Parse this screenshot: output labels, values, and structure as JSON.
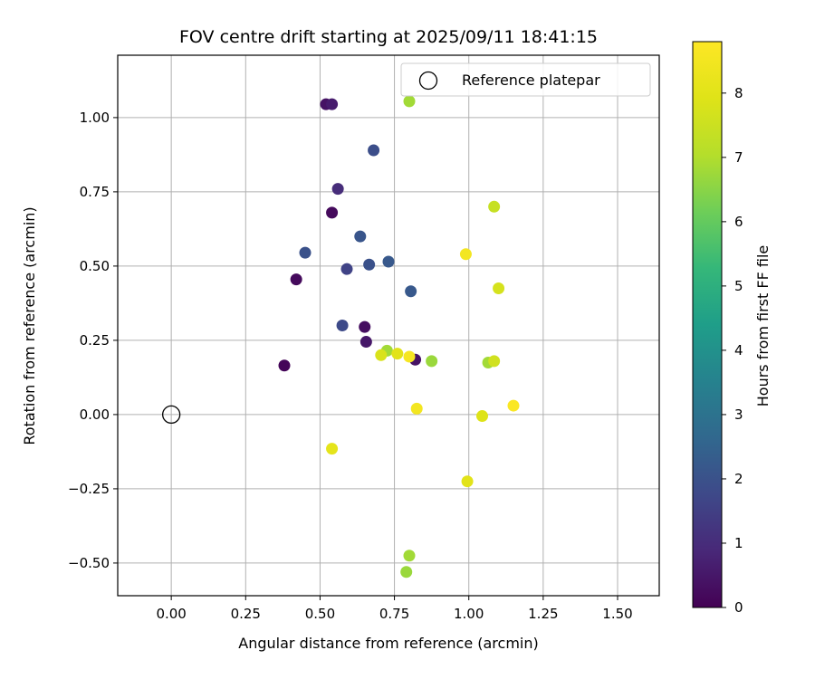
{
  "chart_data": {
    "type": "scatter",
    "title": "FOV centre drift starting at 2025/09/11 18:41:15",
    "xlabel": "Angular distance from reference (arcmin)",
    "ylabel": "Rotation from reference (arcmin)",
    "xlim": [
      -0.18,
      1.64
    ],
    "ylim": [
      -0.61,
      1.21
    ],
    "xticks": [
      0.0,
      0.25,
      0.5,
      0.75,
      1.0,
      1.25,
      1.5
    ],
    "xtick_labels": [
      "0.00",
      "0.25",
      "0.50",
      "0.75",
      "1.00",
      "1.25",
      "1.50"
    ],
    "yticks": [
      -0.5,
      -0.25,
      0.0,
      0.25,
      0.5,
      0.75,
      1.0
    ],
    "ytick_labels": [
      "−0.50",
      "−0.25",
      "0.00",
      "0.25",
      "0.50",
      "0.75",
      "1.00"
    ],
    "grid": true,
    "legend": {
      "location": "top-right",
      "entries": [
        {
          "label": "Reference platepar",
          "marker": "open-circle"
        }
      ],
      "reference_point": {
        "x": 0.0,
        "y": 0.0
      }
    },
    "colorbar": {
      "label": "Hours from first FF file",
      "colormap": "viridis",
      "range": [
        0,
        8.8
      ],
      "ticks": [
        0,
        1,
        2,
        3,
        4,
        5,
        6,
        7,
        8
      ],
      "tick_labels": [
        "0",
        "1",
        "2",
        "3",
        "4",
        "5",
        "6",
        "7",
        "8"
      ]
    },
    "points": [
      {
        "x": 0.52,
        "y": 1.045,
        "hours": 0.4
      },
      {
        "x": 0.54,
        "y": 1.045,
        "hours": 0.6
      },
      {
        "x": 0.56,
        "y": 0.76,
        "hours": 1.0
      },
      {
        "x": 0.54,
        "y": 0.68,
        "hours": 0.2
      },
      {
        "x": 0.42,
        "y": 0.455,
        "hours": 0.2
      },
      {
        "x": 0.38,
        "y": 0.165,
        "hours": 0.1
      },
      {
        "x": 0.65,
        "y": 0.295,
        "hours": 0.3
      },
      {
        "x": 0.655,
        "y": 0.245,
        "hours": 0.5
      },
      {
        "x": 0.82,
        "y": 0.185,
        "hours": 0.4
      },
      {
        "x": 0.68,
        "y": 0.89,
        "hours": 1.9
      },
      {
        "x": 0.45,
        "y": 0.545,
        "hours": 2.0
      },
      {
        "x": 0.59,
        "y": 0.49,
        "hours": 1.6
      },
      {
        "x": 0.635,
        "y": 0.6,
        "hours": 2.1
      },
      {
        "x": 0.665,
        "y": 0.505,
        "hours": 2.0
      },
      {
        "x": 0.73,
        "y": 0.515,
        "hours": 2.2
      },
      {
        "x": 0.805,
        "y": 0.415,
        "hours": 2.2
      },
      {
        "x": 0.575,
        "y": 0.3,
        "hours": 1.8
      },
      {
        "x": 0.8,
        "y": 1.055,
        "hours": 6.8
      },
      {
        "x": 0.725,
        "y": 0.215,
        "hours": 6.8
      },
      {
        "x": 0.875,
        "y": 0.18,
        "hours": 6.7
      },
      {
        "x": 1.065,
        "y": 0.175,
        "hours": 6.8
      },
      {
        "x": 0.8,
        "y": -0.475,
        "hours": 6.8
      },
      {
        "x": 0.79,
        "y": -0.53,
        "hours": 6.7
      },
      {
        "x": 1.085,
        "y": 0.7,
        "hours": 7.4
      },
      {
        "x": 1.085,
        "y": 0.18,
        "hours": 7.6
      },
      {
        "x": 1.1,
        "y": 0.425,
        "hours": 7.7
      },
      {
        "x": 0.705,
        "y": 0.2,
        "hours": 7.8
      },
      {
        "x": 0.76,
        "y": 0.205,
        "hours": 8.0
      },
      {
        "x": 1.045,
        "y": -0.005,
        "hours": 7.9
      },
      {
        "x": 0.995,
        "y": -0.225,
        "hours": 8.0
      },
      {
        "x": 0.54,
        "y": -0.115,
        "hours": 8.1
      },
      {
        "x": 0.99,
        "y": 0.54,
        "hours": 8.5
      },
      {
        "x": 0.8,
        "y": 0.195,
        "hours": 8.6
      },
      {
        "x": 0.825,
        "y": 0.02,
        "hours": 8.5
      },
      {
        "x": 1.15,
        "y": 0.03,
        "hours": 8.7
      }
    ]
  }
}
